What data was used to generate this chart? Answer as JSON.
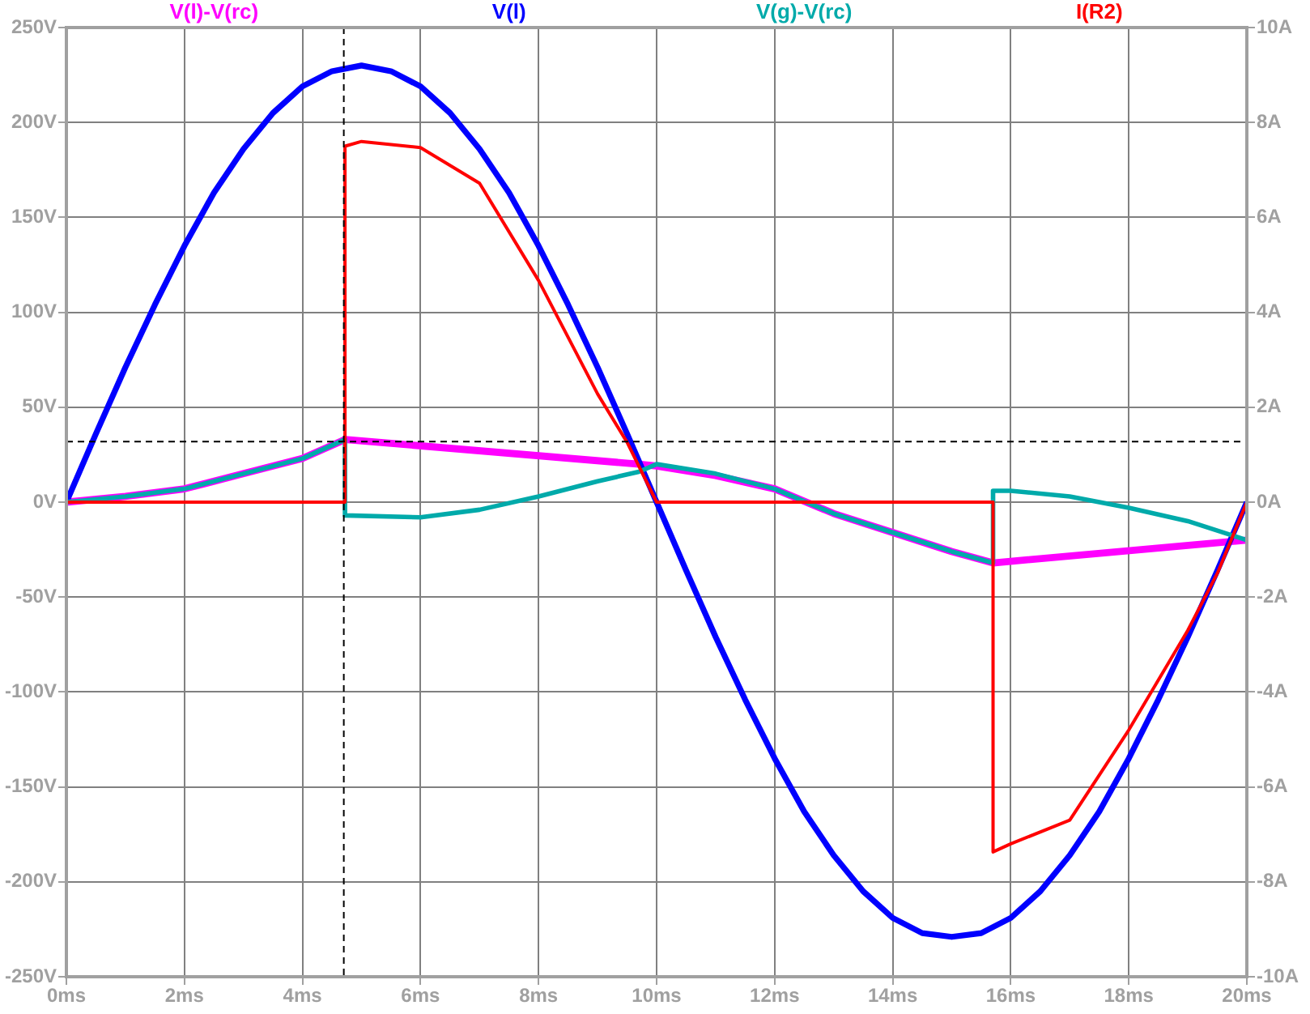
{
  "chart_data": {
    "type": "line",
    "legend": "top",
    "grid": true,
    "marker": "none",
    "line_style": "solid",
    "xlim": [
      0,
      20
    ],
    "xticks": [
      {
        "value": 0,
        "label": "0ms"
      },
      {
        "value": 2,
        "label": "2ms"
      },
      {
        "value": 4,
        "label": "4ms"
      },
      {
        "value": 6,
        "label": "6ms"
      },
      {
        "value": 8,
        "label": "8ms"
      },
      {
        "value": 10,
        "label": "10ms"
      },
      {
        "value": 12,
        "label": "12ms"
      },
      {
        "value": 14,
        "label": "14ms"
      },
      {
        "value": 16,
        "label": "16ms"
      },
      {
        "value": 18,
        "label": "18ms"
      },
      {
        "value": 20,
        "label": "20ms"
      }
    ],
    "ylim": [
      -250,
      250
    ],
    "yticks": [
      {
        "value": -250,
        "label": "-250V"
      },
      {
        "value": -200,
        "label": "-200V"
      },
      {
        "value": -150,
        "label": "-150V"
      },
      {
        "value": -100,
        "label": "-100V"
      },
      {
        "value": -50,
        "label": "-50V"
      },
      {
        "value": 0,
        "label": "0V"
      },
      {
        "value": 50,
        "label": "50V"
      },
      {
        "value": 100,
        "label": "100V"
      },
      {
        "value": 150,
        "label": "150V"
      },
      {
        "value": 200,
        "label": "200V"
      },
      {
        "value": 250,
        "label": "250V"
      }
    ],
    "y2lim": [
      -10,
      10
    ],
    "y2ticks": [
      {
        "value": -10,
        "label": "-10A"
      },
      {
        "value": -8,
        "label": "-8A"
      },
      {
        "value": -6,
        "label": "-6A"
      },
      {
        "value": -4,
        "label": "-4A"
      },
      {
        "value": -2,
        "label": "-2A"
      },
      {
        "value": 0,
        "label": "0A"
      },
      {
        "value": 2,
        "label": "2A"
      },
      {
        "value": 4,
        "label": "4A"
      },
      {
        "value": 6,
        "label": "6A"
      },
      {
        "value": 8,
        "label": "8A"
      },
      {
        "value": 10,
        "label": "10A"
      }
    ],
    "ref_lines": [
      {
        "axis": "x",
        "value": 4.7,
        "color": "#000000",
        "line_style": "dashed"
      },
      {
        "axis": "y",
        "value": 31.9,
        "color": "#000000",
        "line_style": "dashed"
      }
    ],
    "series": [
      {
        "name": "V(l)-V(rc)",
        "color": "#ff00ff",
        "x": [
          0,
          1,
          2,
          3,
          4,
          4.72,
          9.7,
          10,
          11,
          12,
          13,
          14,
          15,
          15.7,
          20
        ],
        "values": [
          0,
          3,
          7,
          15,
          23,
          33,
          20,
          19,
          14,
          7,
          -6,
          -16,
          -26,
          -32,
          -20
        ]
      },
      {
        "name": "V(l)",
        "color": "#0000ff",
        "x": [
          0,
          0.5,
          1,
          1.5,
          2,
          2.5,
          3,
          3.5,
          4,
          4.5,
          5,
          5.5,
          6,
          6.5,
          7,
          7.5,
          8,
          8.5,
          9,
          9.5,
          10,
          10.5,
          11,
          11.5,
          12,
          12.5,
          13,
          13.5,
          14,
          14.5,
          15,
          15.5,
          16,
          16.5,
          17,
          17.5,
          18,
          18.5,
          19,
          19.5,
          20
        ],
        "values": [
          0,
          36,
          71,
          104,
          135,
          163,
          186,
          205,
          219,
          227,
          230,
          227,
          219,
          205,
          186,
          163,
          135,
          104,
          71,
          36,
          0,
          -36,
          -71,
          -104,
          -135,
          -163,
          -186,
          -205,
          -219,
          -227,
          -229,
          -227,
          -219,
          -205,
          -186,
          -163,
          -135,
          -104,
          -71,
          -36,
          0
        ]
      },
      {
        "name": "V(g)-V(rc)",
        "color": "#00aaaa",
        "x": [
          0,
          1,
          2,
          3,
          4,
          4.72,
          4.72,
          6,
          7,
          8,
          9,
          9.7,
          10,
          11,
          12,
          13,
          14,
          15,
          15.7,
          15.7,
          16,
          17,
          18,
          19,
          20
        ],
        "values": [
          0,
          3,
          7,
          15,
          23,
          33,
          -7,
          -8,
          -4,
          3,
          11,
          16,
          20,
          15,
          7,
          -6,
          -16,
          -26,
          -32,
          6,
          6,
          3,
          -3,
          -10,
          -20
        ]
      },
      {
        "name": "I(R2)",
        "color": "#ff0000",
        "axis": "y2",
        "x": [
          0,
          4.72,
          4.72,
          5,
          6,
          7,
          8,
          9,
          9.5,
          10,
          15.7,
          15.7,
          16,
          17,
          18,
          19,
          19.5,
          20
        ],
        "values": [
          0,
          0,
          7.5,
          7.6,
          7.47,
          6.72,
          4.67,
          2.28,
          1.26,
          0,
          0,
          -7.37,
          -7.2,
          -6.7,
          -4.8,
          -2.7,
          -1.5,
          0
        ]
      }
    ]
  }
}
